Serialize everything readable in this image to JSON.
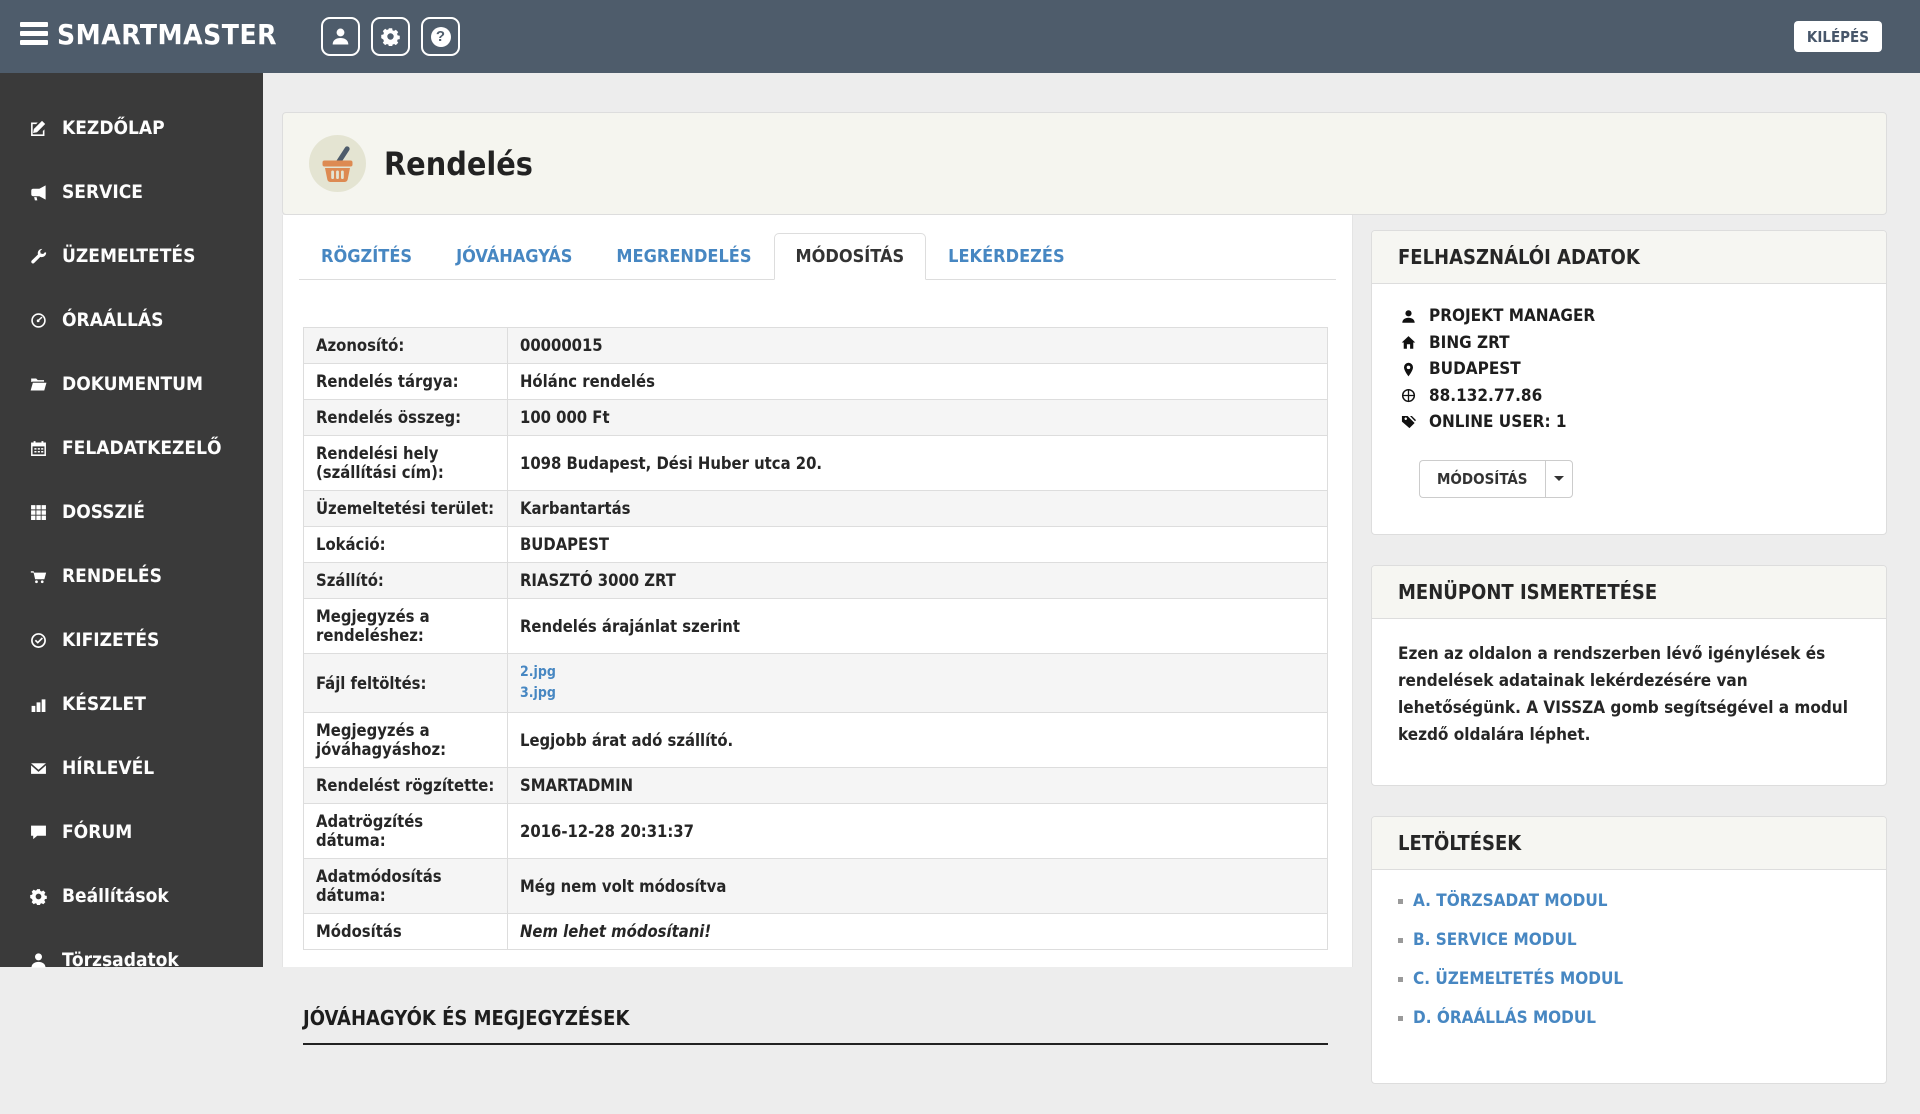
{
  "colors": {
    "navbar_bg": "#4e5c6b",
    "sidebar_bg": "#3a3a3a",
    "accent_blue": "#4787c2",
    "basket_orange": "#dd8a52",
    "panel_border": "#dddddd"
  },
  "navbar": {
    "brand": "SMARTMASTER",
    "logout_label": "KILÉPÉS",
    "icon_buttons": [
      "user-icon",
      "gear-icon",
      "help-icon"
    ]
  },
  "sidebar": {
    "items": [
      {
        "label": "KEZDŐLAP",
        "icon": "edit-icon"
      },
      {
        "label": "SERVICE",
        "icon": "megaphone-icon"
      },
      {
        "label": "ÜZEMELTETÉS",
        "icon": "wrench-icon"
      },
      {
        "label": "ÓRAÁLLÁS",
        "icon": "meter-icon"
      },
      {
        "label": "DOKUMENTUM",
        "icon": "folder-icon"
      },
      {
        "label": "FELADATKEZELŐ",
        "icon": "calendar-icon"
      },
      {
        "label": "DOSSZIÉ",
        "icon": "grid-icon"
      },
      {
        "label": "RENDELÉS",
        "icon": "cart-icon"
      },
      {
        "label": "KIFIZETÉS",
        "icon": "check-circle-icon"
      },
      {
        "label": "KÉSZLET",
        "icon": "bar-chart-icon"
      },
      {
        "label": "HÍRLEVÉL",
        "icon": "envelope-icon"
      },
      {
        "label": "FÓRUM",
        "icon": "comment-icon"
      },
      {
        "label": "Beállítások",
        "icon": "gear-icon"
      },
      {
        "label": "Törzsadatok",
        "icon": "user-icon"
      }
    ]
  },
  "page": {
    "title": "Rendelés",
    "header_icon": "basket-icon"
  },
  "tabs": [
    {
      "label": "RÖGZÍTÉS"
    },
    {
      "label": "JÓVÁHAGYÁS"
    },
    {
      "label": "MEGRENDELÉS"
    },
    {
      "label": "MÓDOSÍTÁS",
      "active": true
    },
    {
      "label": "LEKÉRDEZÉS"
    }
  ],
  "order_details": {
    "rows": [
      {
        "label": "Azonosító:",
        "value": "00000015"
      },
      {
        "label": "Rendelés tárgya:",
        "value": "Hólánc rendelés"
      },
      {
        "label": "Rendelés összeg:",
        "value": "100 000 Ft"
      },
      {
        "label": "Rendelési hely (szállítási cím):",
        "value": "1098 Budapest, Dési Huber utca 20."
      },
      {
        "label": "Üzemeltetési terület:",
        "value": "Karbantartás"
      },
      {
        "label": "Lokáció:",
        "value": "BUDAPEST"
      },
      {
        "label": "Szállító:",
        "value": "RIASZTÓ 3000 ZRT"
      },
      {
        "label": "Megjegyzés a rendeléshez:",
        "value": "Rendelés árajánlat szerint"
      },
      {
        "label": "Fájl feltöltés:",
        "links": [
          "2.jpg",
          "3.jpg"
        ]
      },
      {
        "label": "Megjegyzés a jóváhagyáshoz:",
        "value": "Legjobb árat adó szállító."
      },
      {
        "label": "Rendelést rögzítette:",
        "value": "SMARTADMIN"
      },
      {
        "label": "Adatrögzítés dátuma:",
        "value": "2016-12-28 20:31:37"
      },
      {
        "label": "Adatmódosítás dátuma:",
        "value": "Még nem volt módosítva"
      },
      {
        "label": "Módosítás",
        "value": "Nem lehet módosítani!",
        "italic": true
      }
    ]
  },
  "main": {
    "section_heading": "JÓVÁHAGYÓK ÉS MEGJEGYZÉSEK"
  },
  "user_panel": {
    "title": "FELHASZNÁLÓI ADATOK",
    "items": [
      {
        "icon": "user-icon",
        "text": "PROJEKT MANAGER"
      },
      {
        "icon": "home-icon",
        "text": "BING ZRT"
      },
      {
        "icon": "map-marker-icon",
        "text": "BUDAPEST"
      },
      {
        "icon": "globe-icon",
        "text": "88.132.77.86"
      },
      {
        "icon": "tags-icon",
        "text": "ONLINE USER: 1"
      }
    ],
    "button_label": "MÓDOSÍTÁS"
  },
  "info_panel": {
    "title": "MENÜPONT ISMERTETÉSE",
    "body": "Ezen az oldalon a rendszerben lévő igénylések és rendelések adatainak lekérdezésére van lehetőségünk. A VISSZA gomb segítségével a modul kezdő oldalára léphet."
  },
  "downloads_panel": {
    "title": "LETÖLTÉSEK",
    "links": [
      "A. TÖRZSADAT MODUL",
      "B. SERVICE MODUL",
      "C. ÜZEMELTETÉS MODUL",
      "D. ÓRAÁLLÁS MODUL"
    ]
  }
}
